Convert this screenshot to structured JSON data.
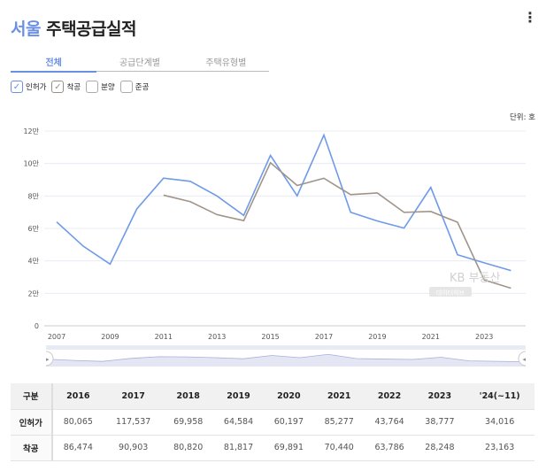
{
  "header": {
    "city": "서울",
    "title": "주택공급실적",
    "more_icon": "kebab-menu-icon"
  },
  "tabs": [
    {
      "label": "전체",
      "active": true
    },
    {
      "label": "공급단계별",
      "active": false
    },
    {
      "label": "주택유형별",
      "active": false
    }
  ],
  "filters": [
    {
      "label": "인허가",
      "checked": true
    },
    {
      "label": "착공",
      "checked": true
    },
    {
      "label": "분양",
      "checked": false
    },
    {
      "label": "준공",
      "checked": false
    }
  ],
  "unit": "단위: 호",
  "watermark": {
    "line1": "KB 부동산",
    "line2": "데이터허브"
  },
  "chart_data": {
    "type": "line",
    "x": [
      2007,
      2008,
      2009,
      2010,
      2011,
      2012,
      2013,
      2014,
      2015,
      2016,
      2017,
      2018,
      2019,
      2020,
      2021,
      2022,
      2023,
      2024
    ],
    "xticks": [
      "2007",
      "2009",
      "2011",
      "2013",
      "2015",
      "2017",
      "2019",
      "2021",
      "2023"
    ],
    "xtick_values": [
      2007,
      2009,
      2011,
      2013,
      2015,
      2017,
      2019,
      2021,
      2023
    ],
    "yticks": [
      "0",
      "2만",
      "4만",
      "6만",
      "8만",
      "10만",
      "12만"
    ],
    "ytick_values": [
      0,
      20000,
      40000,
      60000,
      80000,
      100000,
      120000
    ],
    "ylim": [
      0,
      120000
    ],
    "series": [
      {
        "name": "인허가",
        "color": "#6e9ae8",
        "values": [
          64000,
          49000,
          38000,
          72000,
          91000,
          89000,
          80000,
          68000,
          105000,
          80065,
          117537,
          69958,
          64584,
          60197,
          85277,
          43764,
          38777,
          34016
        ]
      },
      {
        "name": "착공",
        "color": "#a09488",
        "values": [
          null,
          null,
          null,
          null,
          80500,
          76500,
          68500,
          64800,
          100500,
          86474,
          90903,
          80820,
          81817,
          69891,
          70440,
          63786,
          28248,
          23163
        ]
      }
    ]
  },
  "table": {
    "headers": [
      "구분",
      "2016",
      "2017",
      "2018",
      "2019",
      "2020",
      "2021",
      "2022",
      "2023",
      "'24(~11)"
    ],
    "rows": [
      {
        "label": "인허가",
        "values": [
          "80,065",
          "117,537",
          "69,958",
          "64,584",
          "60,197",
          "85,277",
          "43,764",
          "38,777",
          "34,016"
        ]
      },
      {
        "label": "착공",
        "values": [
          "86,474",
          "90,903",
          "80,820",
          "81,817",
          "69,891",
          "70,440",
          "63,786",
          "28,248",
          "23,163"
        ]
      }
    ]
  }
}
